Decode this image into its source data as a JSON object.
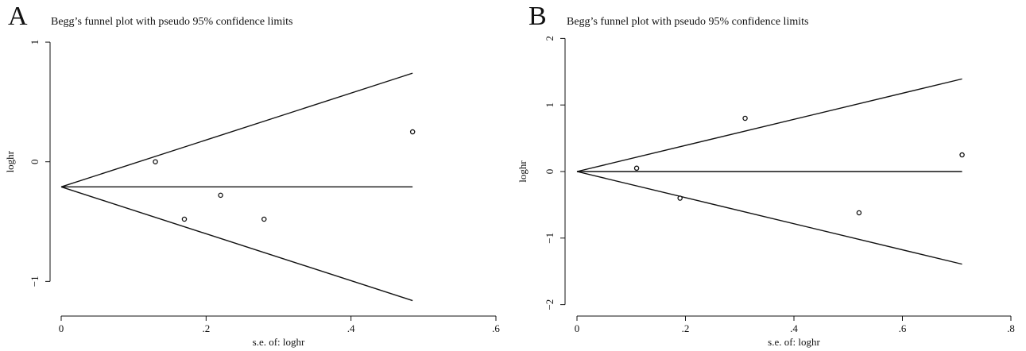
{
  "panels": [
    {
      "letter": "A",
      "title": "Begg’s funnel plot with pseudo 95% confidence limits"
    },
    {
      "letter": "B",
      "title": "Begg’s funnel plot with pseudo 95% confidence limits"
    }
  ],
  "chart_data": [
    {
      "type": "scatter",
      "title": "Begg’s funnel plot with pseudo 95% confidence limits",
      "xlabel": "s.e. of: loghr",
      "ylabel": "loghr",
      "xlim": [
        0,
        0.6
      ],
      "ylim": [
        -1.25,
        1.1
      ],
      "x_ticks": [
        0,
        0.2,
        0.4,
        0.6
      ],
      "x_tick_labels": [
        "0",
        ".2",
        ".4",
        ".6"
      ],
      "y_ticks": [
        -1,
        0,
        1
      ],
      "y_tick_labels": [
        "−1",
        "0",
        "1"
      ],
      "points": [
        {
          "x": 0.13,
          "y": 0.0
        },
        {
          "x": 0.17,
          "y": -0.48
        },
        {
          "x": 0.22,
          "y": -0.28
        },
        {
          "x": 0.28,
          "y": -0.48
        },
        {
          "x": 0.485,
          "y": 0.25
        }
      ],
      "pooled_estimate": -0.21,
      "funnel_max_se": 0.485,
      "grid": false
    },
    {
      "type": "scatter",
      "title": "Begg’s funnel plot with pseudo 95% confidence limits",
      "xlabel": "s.e. of: loghr",
      "ylabel": "loghr",
      "xlim": [
        0,
        0.8
      ],
      "ylim": [
        -2.1,
        2.1
      ],
      "x_ticks": [
        0,
        0.2,
        0.4,
        0.6,
        0.8
      ],
      "x_tick_labels": [
        "0",
        ".2",
        ".4",
        ".6",
        ".8"
      ],
      "y_ticks": [
        -2,
        -1,
        0,
        1,
        2
      ],
      "y_tick_labels": [
        "−2",
        "−1",
        "0",
        "1",
        "2"
      ],
      "points": [
        {
          "x": 0.11,
          "y": 0.05
        },
        {
          "x": 0.19,
          "y": -0.4
        },
        {
          "x": 0.31,
          "y": 0.8
        },
        {
          "x": 0.52,
          "y": -0.62
        },
        {
          "x": 0.71,
          "y": 0.25
        }
      ],
      "pooled_estimate": 0.0,
      "funnel_max_se": 0.71,
      "grid": false
    }
  ]
}
